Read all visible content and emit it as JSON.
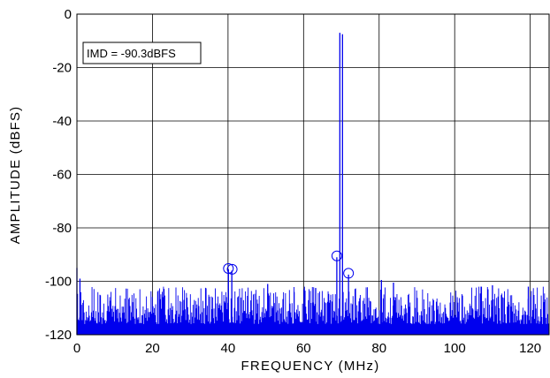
{
  "chart_data": {
    "type": "line",
    "title": "",
    "xlabel": "FREQUENCY (MHz)",
    "ylabel": "AMPLITUDE (dBFS)",
    "xlim": [
      0,
      125
    ],
    "ylim": [
      -120,
      0
    ],
    "x_ticks": [
      0,
      20,
      40,
      60,
      80,
      100,
      120
    ],
    "y_ticks": [
      0,
      -20,
      -40,
      -60,
      -80,
      -100,
      -120
    ],
    "x_tick_labels": [
      "0",
      "20",
      "40",
      "60",
      "80",
      "100",
      "120"
    ],
    "y_tick_labels": [
      "0",
      "-20",
      "-40",
      "-60",
      "-80",
      "-100",
      "-120"
    ],
    "grid": true,
    "series_color": "#0000ee",
    "noise_floor_range": [
      -120,
      -100
    ],
    "peaks": [
      {
        "x": 69.6,
        "y": -7.0
      },
      {
        "x": 70.3,
        "y": -7.5
      },
      {
        "x": 0.0,
        "y": -95.0
      },
      {
        "x": 0.8,
        "y": -99.0
      },
      {
        "x": 40.1,
        "y": -95.5
      },
      {
        "x": 41.0,
        "y": -96.0
      },
      {
        "x": 68.8,
        "y": -91.0
      },
      {
        "x": 71.9,
        "y": -97.5
      },
      {
        "x": 50.5,
        "y": -101.0
      },
      {
        "x": 80.6,
        "y": -99.5
      },
      {
        "x": 83.8,
        "y": -100.5
      },
      {
        "x": 110.0,
        "y": -101.5
      },
      {
        "x": 107.0,
        "y": -102.0
      },
      {
        "x": 119.5,
        "y": -102.0
      },
      {
        "x": 63.2,
        "y": -102.5
      },
      {
        "x": 57.5,
        "y": -104.0
      }
    ],
    "markers": [
      {
        "x": 40.1,
        "y": -95.2
      },
      {
        "x": 41.1,
        "y": -95.5
      },
      {
        "x": 68.8,
        "y": -90.5
      },
      {
        "x": 71.9,
        "y": -97.0
      }
    ],
    "annotation": {
      "text": "IMD = -90.3dBFS"
    }
  }
}
